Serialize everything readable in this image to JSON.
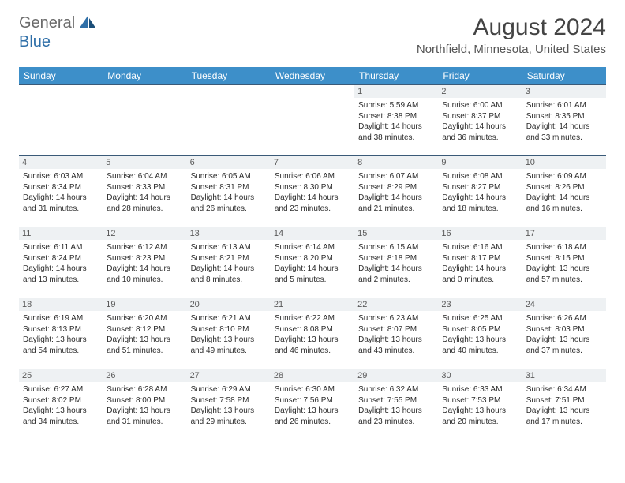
{
  "logo": {
    "text1": "General",
    "text2": "Blue"
  },
  "title": "August 2024",
  "location": "Northfield, Minnesota, United States",
  "colors": {
    "header_bg": "#3d8fc9",
    "header_text": "#ffffff",
    "border": "#3a5a78",
    "daynum_bg": "#eef1f3",
    "logo_gray": "#6a6a6a",
    "logo_blue": "#2f6fa8"
  },
  "typography": {
    "title_fontsize": 30,
    "location_fontsize": 15,
    "header_fontsize": 12,
    "daynum_fontsize": 11,
    "cell_fontsize": 10
  },
  "weekdays": [
    "Sunday",
    "Monday",
    "Tuesday",
    "Wednesday",
    "Thursday",
    "Friday",
    "Saturday"
  ],
  "weeks": [
    [
      {
        "day": "",
        "sunrise": "",
        "sunset": "",
        "daylight": ""
      },
      {
        "day": "",
        "sunrise": "",
        "sunset": "",
        "daylight": ""
      },
      {
        "day": "",
        "sunrise": "",
        "sunset": "",
        "daylight": ""
      },
      {
        "day": "",
        "sunrise": "",
        "sunset": "",
        "daylight": ""
      },
      {
        "day": "1",
        "sunrise": "Sunrise: 5:59 AM",
        "sunset": "Sunset: 8:38 PM",
        "daylight": "Daylight: 14 hours and 38 minutes."
      },
      {
        "day": "2",
        "sunrise": "Sunrise: 6:00 AM",
        "sunset": "Sunset: 8:37 PM",
        "daylight": "Daylight: 14 hours and 36 minutes."
      },
      {
        "day": "3",
        "sunrise": "Sunrise: 6:01 AM",
        "sunset": "Sunset: 8:35 PM",
        "daylight": "Daylight: 14 hours and 33 minutes."
      }
    ],
    [
      {
        "day": "4",
        "sunrise": "Sunrise: 6:03 AM",
        "sunset": "Sunset: 8:34 PM",
        "daylight": "Daylight: 14 hours and 31 minutes."
      },
      {
        "day": "5",
        "sunrise": "Sunrise: 6:04 AM",
        "sunset": "Sunset: 8:33 PM",
        "daylight": "Daylight: 14 hours and 28 minutes."
      },
      {
        "day": "6",
        "sunrise": "Sunrise: 6:05 AM",
        "sunset": "Sunset: 8:31 PM",
        "daylight": "Daylight: 14 hours and 26 minutes."
      },
      {
        "day": "7",
        "sunrise": "Sunrise: 6:06 AM",
        "sunset": "Sunset: 8:30 PM",
        "daylight": "Daylight: 14 hours and 23 minutes."
      },
      {
        "day": "8",
        "sunrise": "Sunrise: 6:07 AM",
        "sunset": "Sunset: 8:29 PM",
        "daylight": "Daylight: 14 hours and 21 minutes."
      },
      {
        "day": "9",
        "sunrise": "Sunrise: 6:08 AM",
        "sunset": "Sunset: 8:27 PM",
        "daylight": "Daylight: 14 hours and 18 minutes."
      },
      {
        "day": "10",
        "sunrise": "Sunrise: 6:09 AM",
        "sunset": "Sunset: 8:26 PM",
        "daylight": "Daylight: 14 hours and 16 minutes."
      }
    ],
    [
      {
        "day": "11",
        "sunrise": "Sunrise: 6:11 AM",
        "sunset": "Sunset: 8:24 PM",
        "daylight": "Daylight: 14 hours and 13 minutes."
      },
      {
        "day": "12",
        "sunrise": "Sunrise: 6:12 AM",
        "sunset": "Sunset: 8:23 PM",
        "daylight": "Daylight: 14 hours and 10 minutes."
      },
      {
        "day": "13",
        "sunrise": "Sunrise: 6:13 AM",
        "sunset": "Sunset: 8:21 PM",
        "daylight": "Daylight: 14 hours and 8 minutes."
      },
      {
        "day": "14",
        "sunrise": "Sunrise: 6:14 AM",
        "sunset": "Sunset: 8:20 PM",
        "daylight": "Daylight: 14 hours and 5 minutes."
      },
      {
        "day": "15",
        "sunrise": "Sunrise: 6:15 AM",
        "sunset": "Sunset: 8:18 PM",
        "daylight": "Daylight: 14 hours and 2 minutes."
      },
      {
        "day": "16",
        "sunrise": "Sunrise: 6:16 AM",
        "sunset": "Sunset: 8:17 PM",
        "daylight": "Daylight: 14 hours and 0 minutes."
      },
      {
        "day": "17",
        "sunrise": "Sunrise: 6:18 AM",
        "sunset": "Sunset: 8:15 PM",
        "daylight": "Daylight: 13 hours and 57 minutes."
      }
    ],
    [
      {
        "day": "18",
        "sunrise": "Sunrise: 6:19 AM",
        "sunset": "Sunset: 8:13 PM",
        "daylight": "Daylight: 13 hours and 54 minutes."
      },
      {
        "day": "19",
        "sunrise": "Sunrise: 6:20 AM",
        "sunset": "Sunset: 8:12 PM",
        "daylight": "Daylight: 13 hours and 51 minutes."
      },
      {
        "day": "20",
        "sunrise": "Sunrise: 6:21 AM",
        "sunset": "Sunset: 8:10 PM",
        "daylight": "Daylight: 13 hours and 49 minutes."
      },
      {
        "day": "21",
        "sunrise": "Sunrise: 6:22 AM",
        "sunset": "Sunset: 8:08 PM",
        "daylight": "Daylight: 13 hours and 46 minutes."
      },
      {
        "day": "22",
        "sunrise": "Sunrise: 6:23 AM",
        "sunset": "Sunset: 8:07 PM",
        "daylight": "Daylight: 13 hours and 43 minutes."
      },
      {
        "day": "23",
        "sunrise": "Sunrise: 6:25 AM",
        "sunset": "Sunset: 8:05 PM",
        "daylight": "Daylight: 13 hours and 40 minutes."
      },
      {
        "day": "24",
        "sunrise": "Sunrise: 6:26 AM",
        "sunset": "Sunset: 8:03 PM",
        "daylight": "Daylight: 13 hours and 37 minutes."
      }
    ],
    [
      {
        "day": "25",
        "sunrise": "Sunrise: 6:27 AM",
        "sunset": "Sunset: 8:02 PM",
        "daylight": "Daylight: 13 hours and 34 minutes."
      },
      {
        "day": "26",
        "sunrise": "Sunrise: 6:28 AM",
        "sunset": "Sunset: 8:00 PM",
        "daylight": "Daylight: 13 hours and 31 minutes."
      },
      {
        "day": "27",
        "sunrise": "Sunrise: 6:29 AM",
        "sunset": "Sunset: 7:58 PM",
        "daylight": "Daylight: 13 hours and 29 minutes."
      },
      {
        "day": "28",
        "sunrise": "Sunrise: 6:30 AM",
        "sunset": "Sunset: 7:56 PM",
        "daylight": "Daylight: 13 hours and 26 minutes."
      },
      {
        "day": "29",
        "sunrise": "Sunrise: 6:32 AM",
        "sunset": "Sunset: 7:55 PM",
        "daylight": "Daylight: 13 hours and 23 minutes."
      },
      {
        "day": "30",
        "sunrise": "Sunrise: 6:33 AM",
        "sunset": "Sunset: 7:53 PM",
        "daylight": "Daylight: 13 hours and 20 minutes."
      },
      {
        "day": "31",
        "sunrise": "Sunrise: 6:34 AM",
        "sunset": "Sunset: 7:51 PM",
        "daylight": "Daylight: 13 hours and 17 minutes."
      }
    ]
  ]
}
